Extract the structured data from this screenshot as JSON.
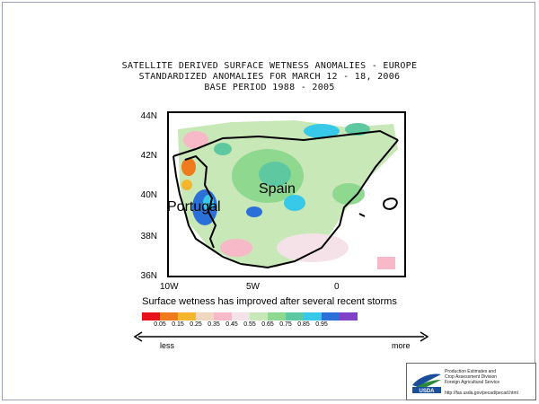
{
  "title_lines": [
    "SATELLITE DERIVED SURFACE WETNESS ANOMALIES - EUROPE",
    "STANDARDIZED ANOMALIES FOR MARCH 12 - 18, 2006",
    "BASE PERIOD 1988 - 2005"
  ],
  "lat_labels": [
    "44N",
    "42N",
    "40N",
    "38N",
    "36N"
  ],
  "lon_labels": [
    "10W",
    "5W",
    "0"
  ],
  "countries": [
    "Portugal",
    "Spain"
  ],
  "caption": "Surface wetness has improved after several recent storms",
  "legend": {
    "colors": [
      "#e8101a",
      "#f07a1e",
      "#f5b62e",
      "#f0d8c0",
      "#f7b8c8",
      "#f4e2e8",
      "#c8e8b8",
      "#8ed890",
      "#5ec8a0",
      "#38c8e8",
      "#2a70d8",
      "#8040c8"
    ],
    "ticks": [
      "0.05",
      "0.15",
      "0.25",
      "0.35",
      "0.45",
      "0.55",
      "0.65",
      "0.75",
      "0.85",
      "0.95"
    ],
    "less": "less",
    "more": "more"
  },
  "usda": {
    "lines": [
      "Production Estimates and",
      "Crop Assessment Division",
      "Foreign Agricultural Service"
    ],
    "url": "http://fas.usda.gov/pecad/pecad.html",
    "logo_text": "USDA"
  }
}
